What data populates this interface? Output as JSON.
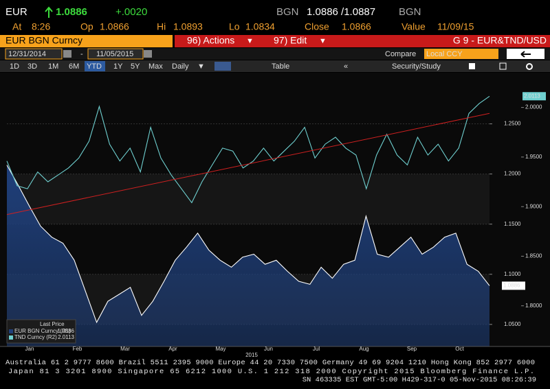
{
  "header": {
    "ticker": "EUR",
    "price": "1.0886",
    "change": "+.0020",
    "bid_currency": "BGN",
    "bid_ask": "1.0886 /1.0887",
    "ask_currency": "BGN"
  },
  "quote": [
    {
      "label": "At",
      "value": "8:26"
    },
    {
      "label": "Op",
      "value": "1.0866"
    },
    {
      "label": "Hi",
      "value": "1.0893"
    },
    {
      "label": "Lo",
      "value": "1.0834"
    },
    {
      "label": "Close",
      "value": "1.0866"
    },
    {
      "label": "Value",
      "value": "11/09/15"
    }
  ],
  "toolbar": {
    "security": "EUR BGN Curncy",
    "actions": "96) Actions",
    "edit": "97) Edit",
    "page": "G 9 - EUR&TND/USD",
    "start_date": "12/31/2014",
    "dash": "-",
    "end_date": "11/05/2015",
    "compare": "Compare",
    "currency": "Local CCY",
    "periods": [
      "1D",
      "3D",
      "1M",
      "6M",
      "YTD",
      "1Y",
      "5Y",
      "Max"
    ],
    "frequency": "Daily",
    "table": "Table",
    "study": "Security/Study"
  },
  "chart_data": {
    "type": "line",
    "x_labels": [
      "Jan",
      "Feb",
      "Mar",
      "Apr",
      "May",
      "Jun",
      "Jul",
      "Aug",
      "Sep",
      "Oct"
    ],
    "x_year": "2015",
    "legend_title": "Last Price",
    "series": [
      {
        "name": "EUR BGN Curncy (R1)",
        "color": "#ffffff",
        "fill": "#1f3f7a",
        "axis": "y",
        "values": [
          1.209,
          1.189,
          1.168,
          1.148,
          1.137,
          1.131,
          1.114,
          1.083,
          1.052,
          1.073,
          1.08,
          1.087,
          1.059,
          1.073,
          1.093,
          1.114,
          1.127,
          1.141,
          1.124,
          1.114,
          1.107,
          1.117,
          1.12,
          1.11,
          1.114,
          1.103,
          1.093,
          1.09,
          1.107,
          1.096,
          1.11,
          1.114,
          1.158,
          1.12,
          1.117,
          1.127,
          1.137,
          1.12,
          1.127,
          1.137,
          1.141,
          1.11,
          1.103,
          1.0886
        ]
      },
      {
        "name": "TND Curncy (R2)",
        "color": "#6fd0d0",
        "axis": "y2",
        "values": [
          1.946,
          1.921,
          1.918,
          1.935,
          1.925,
          1.932,
          1.939,
          1.949,
          1.966,
          2.001,
          1.963,
          1.946,
          1.959,
          1.935,
          1.98,
          1.949,
          1.932,
          1.918,
          1.904,
          1.925,
          1.942,
          1.959,
          1.956,
          1.939,
          1.946,
          1.959,
          1.946,
          1.956,
          1.966,
          1.98,
          1.949,
          1.963,
          1.97,
          1.959,
          1.952,
          1.918,
          1.952,
          1.973,
          1.952,
          1.942,
          1.97,
          1.952,
          1.963,
          1.946,
          1.959,
          1.994,
          2.004,
          2.0113
        ]
      }
    ],
    "trend": {
      "color": "#d02020",
      "axis": "y2",
      "values": [
        1.892,
        1.994
      ]
    },
    "ylim": [
      1.028,
      1.301
    ],
    "yticks": [
      {
        "value": 1.05,
        "label": "1.0500"
      },
      {
        "value": 1.1,
        "label": "1.1000"
      },
      {
        "value": 1.15,
        "label": "1.1500"
      },
      {
        "value": 1.2,
        "label": "1.2000"
      },
      {
        "value": 1.25,
        "label": "1.2500"
      }
    ],
    "y2lim": [
      1.759,
      2.035
    ],
    "y2ticks": [
      {
        "value": 1.8,
        "label": "1.8000"
      },
      {
        "value": 1.85,
        "label": "1.8500"
      },
      {
        "value": 1.9,
        "label": "1.9000"
      },
      {
        "value": 1.95,
        "label": "1.9500"
      },
      {
        "value": 2,
        "label": "2.0000"
      }
    ],
    "grid": true
  },
  "footer": [
    "Australia 61 2 9777 8600 Brazil 5511 2395 9000 Europe 44 20 7330 7500 Germany 49 69 9204 1210 Hong Kong 852 2977 6000",
    "Japan 81 3 3201 8900       Singapore 65 6212 1000       U.S. 1 212 318 2000       Copyright 2015 Bloomberg Finance L.P.",
    "SN 463335 EST  GMT-5:00 H429-317-0 05-Nov-2015 08:26:39"
  ]
}
